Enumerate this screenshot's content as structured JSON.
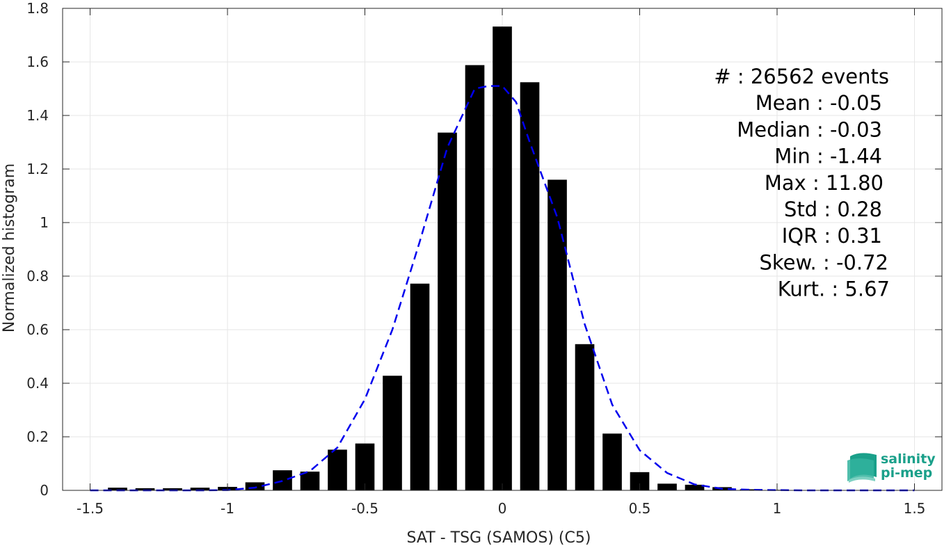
{
  "chart_data": {
    "type": "bar",
    "xlabel": "SAT - TSG (SAMOS) (C5)",
    "ylabel": "Normalized histogram",
    "xlim": [
      -1.6,
      1.6
    ],
    "ylim": [
      0,
      1.8
    ],
    "xticks": [
      -1.5,
      -1,
      -0.5,
      0,
      0.5,
      1,
      1.5
    ],
    "xtick_labels": [
      "-1.5",
      "-1",
      "-0.5",
      "0",
      "0.5",
      "1",
      "1.5"
    ],
    "yticks": [
      0,
      0.2,
      0.4,
      0.6,
      0.8,
      1,
      1.2,
      1.4,
      1.6,
      1.8
    ],
    "ytick_labels": [
      "0",
      "0.2",
      "0.4",
      "0.6",
      "0.8",
      "1",
      "1.2",
      "1.4",
      "1.6",
      "1.8"
    ],
    "grid": true,
    "bar_width": 0.07,
    "bar_color": "#000000",
    "bars": [
      {
        "x": -1.4,
        "y": 0.01
      },
      {
        "x": -1.3,
        "y": 0.008
      },
      {
        "x": -1.2,
        "y": 0.008
      },
      {
        "x": -1.1,
        "y": 0.01
      },
      {
        "x": -1.0,
        "y": 0.013
      },
      {
        "x": -0.9,
        "y": 0.03
      },
      {
        "x": -0.8,
        "y": 0.075
      },
      {
        "x": -0.7,
        "y": 0.07
      },
      {
        "x": -0.6,
        "y": 0.152
      },
      {
        "x": -0.5,
        "y": 0.175
      },
      {
        "x": -0.4,
        "y": 0.428
      },
      {
        "x": -0.3,
        "y": 0.772
      },
      {
        "x": -0.2,
        "y": 1.336
      },
      {
        "x": -0.1,
        "y": 1.588
      },
      {
        "x": 0.0,
        "y": 1.732
      },
      {
        "x": 0.1,
        "y": 1.524
      },
      {
        "x": 0.2,
        "y": 1.16
      },
      {
        "x": 0.3,
        "y": 0.546
      },
      {
        "x": 0.4,
        "y": 0.212
      },
      {
        "x": 0.5,
        "y": 0.068
      },
      {
        "x": 0.6,
        "y": 0.025
      },
      {
        "x": 0.7,
        "y": 0.021
      },
      {
        "x": 0.8,
        "y": 0.012
      },
      {
        "x": 0.9,
        "y": 0.004
      },
      {
        "x": 1.0,
        "y": 0.002
      },
      {
        "x": 1.1,
        "y": 0.001
      },
      {
        "x": 1.2,
        "y": 0.001
      },
      {
        "x": 1.3,
        "y": 0.001
      },
      {
        "x": 1.4,
        "y": 0.001
      },
      {
        "x": 1.5,
        "y": 0.001
      }
    ],
    "fit_curve": {
      "style": "dashed",
      "color": "#0000ee",
      "points": [
        [
          -1.5,
          0.0
        ],
        [
          -1.4,
          0.0
        ],
        [
          -1.3,
          0.0
        ],
        [
          -1.2,
          0.0
        ],
        [
          -1.1,
          0.0
        ],
        [
          -1.0,
          0.001
        ],
        [
          -0.9,
          0.01
        ],
        [
          -0.8,
          0.035
        ],
        [
          -0.7,
          0.072
        ],
        [
          -0.6,
          0.16
        ],
        [
          -0.5,
          0.34
        ],
        [
          -0.4,
          0.6
        ],
        [
          -0.3,
          0.93
        ],
        [
          -0.2,
          1.28
        ],
        [
          -0.1,
          1.5
        ],
        [
          -0.05,
          1.51
        ],
        [
          0.0,
          1.51
        ],
        [
          0.05,
          1.45
        ],
        [
          0.1,
          1.3
        ],
        [
          0.2,
          1.02
        ],
        [
          0.3,
          0.62
        ],
        [
          0.4,
          0.32
        ],
        [
          0.5,
          0.15
        ],
        [
          0.6,
          0.065
        ],
        [
          0.7,
          0.022
        ],
        [
          0.8,
          0.006
        ],
        [
          0.9,
          0.002
        ],
        [
          1.0,
          0.001
        ],
        [
          1.1,
          0.0
        ],
        [
          1.2,
          0.0
        ],
        [
          1.3,
          0.0
        ],
        [
          1.4,
          0.0
        ],
        [
          1.5,
          0.0
        ]
      ]
    },
    "stats": [
      "#  : 26562 events",
      "Mean : -0.05",
      "Median : -0.03",
      "Min : -1.44",
      "Max : 11.80",
      "Std : 0.28",
      "IQR : 0.31",
      "Skew. : -0.72",
      "Kurt. : 5.67"
    ]
  },
  "logo": {
    "line1": "salinity",
    "line2": "pi-mep",
    "color": "#1aa08a"
  }
}
